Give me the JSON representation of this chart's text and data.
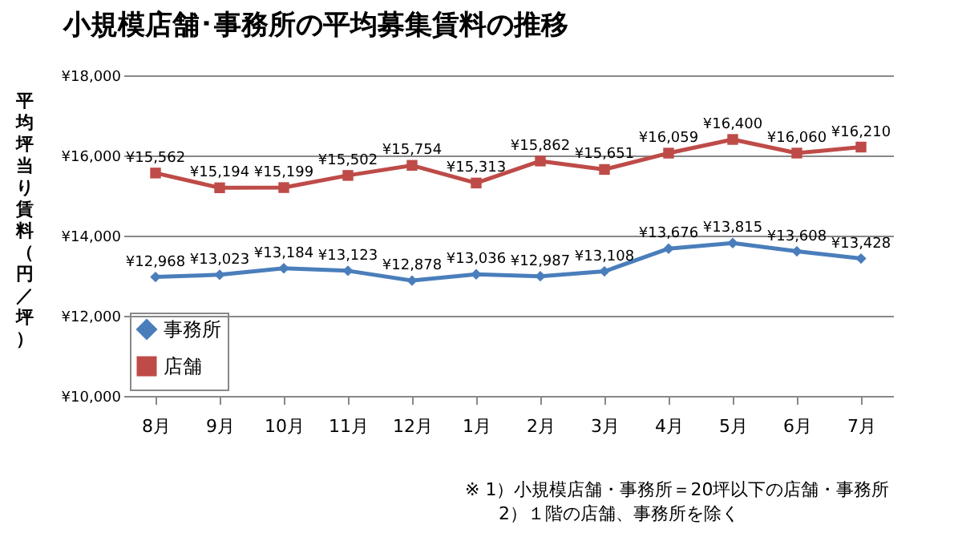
{
  "chart_data": {
    "type": "line",
    "title": "小規模店舗･事務所の平均募集賃料の推移",
    "ylabel": "平均坪当り賃料（円／坪）",
    "categories": [
      "8月",
      "9月",
      "10月",
      "11月",
      "12月",
      "1月",
      "2月",
      "3月",
      "4月",
      "5月",
      "6月",
      "7月"
    ],
    "series": [
      {
        "name": "事務所",
        "color": "#4a7ebb",
        "marker": "diamond",
        "values": [
          12968,
          13023,
          13184,
          13123,
          12878,
          13036,
          12987,
          13108,
          13676,
          13815,
          13608,
          13428
        ],
        "value_labels": [
          "¥12,968",
          "¥13,023",
          "¥13,184",
          "¥13,123",
          "¥12,878",
          "¥13,036",
          "¥12,987",
          "¥13,108",
          "¥13,676",
          "¥13,815",
          "¥13,608",
          "¥13,428"
        ]
      },
      {
        "name": "店舗",
        "color": "#be4b48",
        "marker": "square",
        "values": [
          15562,
          15194,
          15199,
          15502,
          15754,
          15313,
          15862,
          15651,
          16059,
          16400,
          16060,
          16210
        ],
        "value_labels": [
          "¥15,562",
          "¥15,194",
          "¥15,199",
          "¥15,502",
          "¥15,754",
          "¥15,313",
          "¥15,862",
          "¥15,651",
          "¥16,059",
          "¥16,400",
          "¥16,060",
          "¥16,210"
        ]
      }
    ],
    "ylim": [
      10000,
      18000
    ],
    "yticks": [
      {
        "value": 10000,
        "label": "¥10,000"
      },
      {
        "value": 12000,
        "label": "¥12,000"
      },
      {
        "value": 14000,
        "label": "¥14,000"
      },
      {
        "value": 16000,
        "label": "¥16,000"
      },
      {
        "value": 18000,
        "label": "¥18,000"
      }
    ],
    "grid": "y",
    "legend": "bottom left",
    "line_style": "solid",
    "annotations": [
      "※ 1）小規模店舗・事務所＝20坪以下の店舗・事務所",
      "2）１階の店舗、事務所を除く"
    ]
  }
}
